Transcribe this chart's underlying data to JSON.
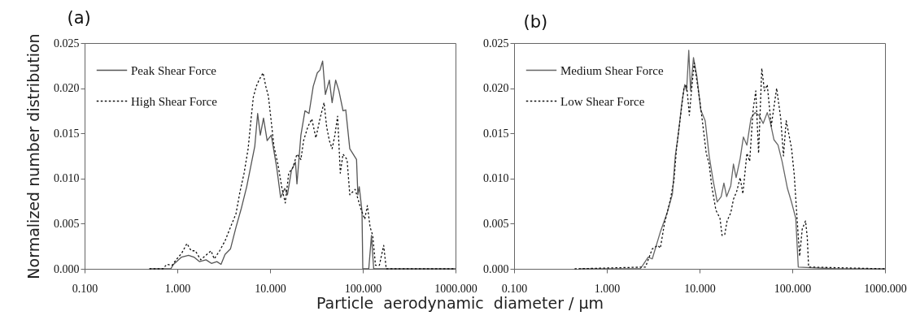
{
  "chart_data": [
    {
      "type": "line",
      "title": "(a)",
      "xlabel": "Particle  aerodynamic  diameter / µm",
      "ylabel": "Normalized number distribution",
      "log": "x",
      "legend": "top left",
      "xlim": [
        0.1,
        1000
      ],
      "ylim": [
        0,
        0.025
      ],
      "xticks": [
        {
          "value": 0.1,
          "label": "0.100"
        },
        {
          "value": 1,
          "label": "1.000"
        },
        {
          "value": 10,
          "label": "10.000"
        },
        {
          "value": 100,
          "label": "100.000"
        },
        {
          "value": 1000,
          "label": "1000.000"
        }
      ],
      "yticks": [
        {
          "value": 0,
          "label": "0.000"
        },
        {
          "value": 0.005,
          "label": "0.005"
        },
        {
          "value": 0.01,
          "label": "0.010"
        },
        {
          "value": 0.015,
          "label": "0.015"
        },
        {
          "value": 0.02,
          "label": "0.020"
        },
        {
          "value": 0.025,
          "label": "0.025"
        }
      ],
      "series": [
        {
          "name": "Peak Shear Force",
          "color": "#555555",
          "line_style": "solid",
          "x": [
            0.5,
            0.85,
            0.91,
            1.11,
            1.32,
            1.51,
            1.73,
            2.04,
            2.33,
            2.67,
            2.96,
            3.27,
            3.74,
            4.29,
            4.9,
            5.6,
            6.85,
            7.35,
            7.85,
            8.5,
            9.3,
            10.3,
            11.8,
            13,
            14.4,
            15.4,
            17,
            18.8,
            19.5,
            21.5,
            23.8,
            26.3,
            29.2,
            32.3,
            34.5,
            36.9,
            39.5,
            43.6,
            46.7,
            51,
            55.3,
            61.2,
            65.5,
            72.4,
            85.6,
            88.5,
            91.6,
            98,
            100,
            116,
            124,
            131,
            200,
            500,
            1000
          ],
          "values": [
            0,
            0,
            0.0005,
            0.0013,
            0.0015,
            0.0013,
            0.0008,
            0.001,
            0.0006,
            0.0008,
            0.0005,
            0.0016,
            0.0022,
            0.0046,
            0.0067,
            0.0091,
            0.0136,
            0.0172,
            0.0148,
            0.0167,
            0.0142,
            0.0148,
            0.0112,
            0.0079,
            0.0089,
            0.0082,
            0.0109,
            0.0118,
            0.0094,
            0.0148,
            0.0175,
            0.0172,
            0.0202,
            0.0217,
            0.022,
            0.023,
            0.0193,
            0.0209,
            0.0184,
            0.0209,
            0.0197,
            0.0175,
            0.0176,
            0.0133,
            0.0121,
            0.0082,
            0.0091,
            0.0064,
            0,
            0,
            0.0037,
            0,
            0,
            0,
            0
          ]
        },
        {
          "name": "High Shear Force",
          "color": "#111111",
          "line_style": "dotted",
          "x": [
            0.5,
            0.7,
            0.77,
            0.88,
            0.97,
            1.11,
            1.27,
            1.41,
            1.56,
            1.79,
            1.98,
            2.31,
            2.5,
            2.86,
            3.27,
            3.74,
            4.29,
            4.73,
            5.25,
            5.8,
            6.2,
            6.6,
            7.1,
            7.6,
            8.4,
            9,
            9.6,
            10.3,
            11,
            12.2,
            13.5,
            14.6,
            15.9,
            17.6,
            19.5,
            21.5,
            23,
            25.5,
            28.2,
            31.2,
            34.5,
            38.2,
            40.8,
            43.6,
            46.7,
            50,
            53.5,
            57.2,
            61.2,
            67.7,
            72.4,
            82.8,
            94.8,
            105,
            112,
            120,
            128,
            137,
            151,
            168,
            179,
            300,
            1000
          ],
          "values": [
            0,
            0,
            0.0005,
            0.0004,
            0.001,
            0.0017,
            0.0028,
            0.002,
            0.002,
            0.001,
            0.0014,
            0.002,
            0.0011,
            0.002,
            0.0031,
            0.0046,
            0.0061,
            0.0085,
            0.0106,
            0.0133,
            0.0163,
            0.019,
            0.0202,
            0.0209,
            0.0217,
            0.0202,
            0.0191,
            0.0163,
            0.0136,
            0.0115,
            0.0088,
            0.0073,
            0.0106,
            0.0112,
            0.0127,
            0.0121,
            0.0142,
            0.0157,
            0.0166,
            0.0145,
            0.0166,
            0.0184,
            0.0157,
            0.0142,
            0.0133,
            0.0148,
            0.0169,
            0.0106,
            0.0127,
            0.0121,
            0.0082,
            0.0088,
            0.0067,
            0.0055,
            0.007,
            0.0046,
            0.0037,
            0.0004,
            0.0004,
            0.0026,
            0,
            0,
            0
          ]
        }
      ]
    },
    {
      "type": "line",
      "title": "(b)",
      "log": "x",
      "legend": "top left",
      "xlim": [
        0.1,
        1000
      ],
      "ylim": [
        0,
        0.025
      ],
      "xticks": [
        {
          "value": 0.1,
          "label": "0.100"
        },
        {
          "value": 1,
          "label": "1.000"
        },
        {
          "value": 10,
          "label": "10.000"
        },
        {
          "value": 100,
          "label": "100.000"
        },
        {
          "value": 1000,
          "label": "1000.000"
        }
      ],
      "yticks": [
        {
          "value": 0,
          "label": "0.000"
        },
        {
          "value": 0.005,
          "label": "0.005"
        },
        {
          "value": 0.01,
          "label": "0.010"
        },
        {
          "value": 0.015,
          "label": "0.015"
        },
        {
          "value": 0.02,
          "label": "0.020"
        },
        {
          "value": 0.025,
          "label": "0.025"
        }
      ],
      "series": [
        {
          "name": "Medium Shear Force",
          "color": "#666666",
          "line_style": "solid",
          "x": [
            0.5,
            2.29,
            2.44,
            2.79,
            3.09,
            3.78,
            4.47,
            5.1,
            5.47,
            5.85,
            6.47,
            6.92,
            7.25,
            7.65,
            8,
            8.6,
            9.36,
            10.3,
            11.5,
            12.7,
            14,
            15.5,
            17.1,
            18.3,
            19.6,
            21.7,
            23.2,
            24.8,
            27.4,
            29.7,
            32.4,
            35.9,
            39.6,
            43.8,
            48.5,
            53.7,
            57.4,
            63.4,
            70.2,
            77.6,
            88.7,
            98,
            109,
            116,
            300,
            1000
          ],
          "values": [
            0,
            0,
            0.0004,
            0.0013,
            0.0011,
            0.0041,
            0.0062,
            0.0083,
            0.0125,
            0.0146,
            0.0185,
            0.0204,
            0.0197,
            0.0242,
            0.0197,
            0.0234,
            0.0213,
            0.0176,
            0.0164,
            0.0125,
            0.0098,
            0.0074,
            0.008,
            0.0095,
            0.008,
            0.0092,
            0.0116,
            0.0101,
            0.0122,
            0.0146,
            0.0137,
            0.0167,
            0.0173,
            0.017,
            0.0161,
            0.0173,
            0.0164,
            0.0143,
            0.0137,
            0.0119,
            0.0089,
            0.0074,
            0.0056,
            0.0002,
            0,
            0
          ]
        },
        {
          "name": "Low Shear Force",
          "color": "#111111",
          "line_style": "dotted",
          "x": [
            0.45,
            2.61,
            3.09,
            3.54,
            3.78,
            4.18,
            4.78,
            5.3,
            5.65,
            6.25,
            6.78,
            7.25,
            7.76,
            8.18,
            8.75,
            9.36,
            10.1,
            10.8,
            11.8,
            12.7,
            13.5,
            15,
            16.6,
            17.5,
            18.7,
            19.8,
            21.7,
            23.2,
            25.2,
            27.4,
            29.3,
            32.4,
            34.7,
            37.8,
            40.4,
            43.3,
            46.9,
            50.1,
            53.7,
            59.3,
            63.4,
            67.8,
            75,
            80.3,
            86,
            98,
            105,
            112,
            120,
            128,
            139,
            145,
            150,
            1000
          ],
          "values": [
            0,
            0.0002,
            0.0022,
            0.0026,
            0.0023,
            0.005,
            0.0074,
            0.0098,
            0.0134,
            0.017,
            0.02,
            0.0204,
            0.017,
            0.0197,
            0.0228,
            0.0208,
            0.0185,
            0.0161,
            0.0128,
            0.0116,
            0.0092,
            0.0065,
            0.0056,
            0.0037,
            0.0038,
            0.0053,
            0.0062,
            0.0077,
            0.0086,
            0.0101,
            0.0083,
            0.0128,
            0.0119,
            0.0176,
            0.0197,
            0.0128,
            0.0222,
            0.0197,
            0.0204,
            0.0158,
            0.0179,
            0.02,
            0.0167,
            0.0125,
            0.0164,
            0.0134,
            0.0104,
            0.0059,
            0.0014,
            0.0044,
            0.0053,
            0.0035,
            0.0002,
            0
          ]
        }
      ]
    }
  ]
}
